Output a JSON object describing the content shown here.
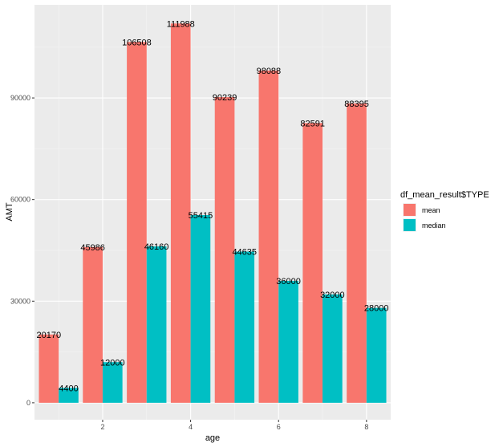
{
  "chart_data": {
    "type": "bar",
    "xlabel": "age",
    "ylabel": "AMT",
    "categories": [
      1,
      2,
      3,
      4,
      5,
      6,
      7,
      8
    ],
    "x_ticks": [
      "2",
      "4",
      "6",
      "8"
    ],
    "y_ticks": [
      "0",
      "30000",
      "60000",
      "90000"
    ],
    "ylim": [
      -5000,
      117500
    ],
    "xlim": [
      0.45,
      8.55
    ],
    "grid": true,
    "legend_position": "right",
    "legend_title": "df_mean_result$TYPE",
    "series": [
      {
        "name": "mean",
        "color": "#F8766D",
        "values": [
          20170,
          45986,
          106508,
          111988,
          90239,
          98088,
          82591,
          88395
        ]
      },
      {
        "name": "median",
        "color": "#00BFC4",
        "values": [
          4400,
          12000,
          46160,
          55415,
          44635,
          36000,
          32000,
          28000
        ]
      }
    ],
    "data_labels": [
      [
        "20170",
        "45986",
        "106508",
        "111988",
        "90239",
        "98088",
        "82591",
        "88395"
      ],
      [
        "4400",
        "12000",
        "46160",
        "55415",
        "44635",
        "36000",
        "32000",
        "28000"
      ]
    ]
  }
}
